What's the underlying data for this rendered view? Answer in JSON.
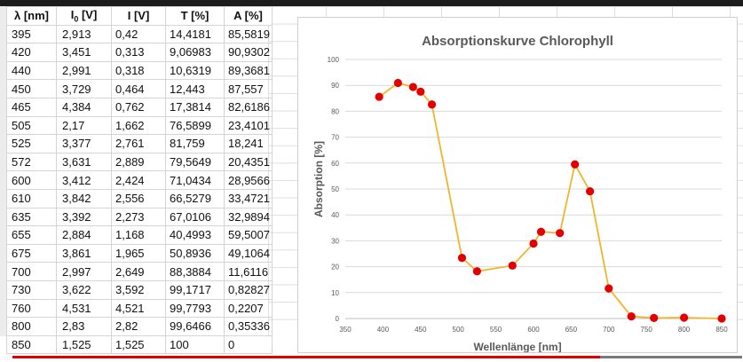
{
  "table": {
    "headers": {
      "lambda": "λ [nm]",
      "u0_main": "I",
      "u0_sub": "0",
      "u0_unit": "[V]",
      "u": "I [V]",
      "t": "T [%]",
      "a": "A [%]"
    },
    "rows": [
      [
        "395",
        "2,913",
        "0,42",
        "14,4181",
        "85,5819"
      ],
      [
        "420",
        "3,451",
        "0,313",
        "9,06983",
        "90,9302"
      ],
      [
        "440",
        "2,991",
        "0,318",
        "10,6319",
        "89,3681"
      ],
      [
        "450",
        "3,729",
        "0,464",
        "12,443",
        "87,557"
      ],
      [
        "465",
        "4,384",
        "0,762",
        "17,3814",
        "82,6186"
      ],
      [
        "505",
        "2,17",
        "1,662",
        "76,5899",
        "23,4101"
      ],
      [
        "525",
        "3,377",
        "2,761",
        "81,759",
        "18,241"
      ],
      [
        "572",
        "3,631",
        "2,889",
        "79,5649",
        "20,4351"
      ],
      [
        "600",
        "3,412",
        "2,424",
        "71,0434",
        "28,9566"
      ],
      [
        "610",
        "3,842",
        "2,556",
        "66,5279",
        "33,4721"
      ],
      [
        "635",
        "3,392",
        "2,273",
        "67,0106",
        "32,9894"
      ],
      [
        "655",
        "2,884",
        "1,168",
        "40,4993",
        "59,5007"
      ],
      [
        "675",
        "3,861",
        "1,965",
        "50,8936",
        "49,1064"
      ],
      [
        "700",
        "2,997",
        "2,649",
        "88,3884",
        "11,6116"
      ],
      [
        "730",
        "3,622",
        "3,592",
        "99,1717",
        "0,82827"
      ],
      [
        "760",
        "4,531",
        "4,521",
        "99,7793",
        "0,2207"
      ],
      [
        "800",
        "2,83",
        "2,82",
        "99,6466",
        "0,35336"
      ],
      [
        "850",
        "1,525",
        "1,525",
        "100",
        "0"
      ]
    ]
  },
  "chart_data": {
    "type": "scatter",
    "title": "Absorptionskurve Chlorophyll",
    "xlabel": "Wellenlänge [nm]",
    "ylabel": "Absorption [%]",
    "xlim": [
      350,
      850
    ],
    "ylim": [
      0,
      100
    ],
    "xticks": [
      350,
      400,
      450,
      500,
      550,
      600,
      650,
      700,
      750,
      800,
      850
    ],
    "yticks": [
      0,
      10,
      20,
      30,
      40,
      50,
      60,
      70,
      80,
      90,
      100
    ],
    "grid": "horizontal",
    "line_color": "#f0b52b",
    "marker_color": "#e30000",
    "series": [
      {
        "x": [
          395,
          420,
          440,
          450,
          465,
          505,
          525,
          572,
          600,
          610,
          635,
          655,
          675,
          700,
          730,
          760,
          800,
          850
        ],
        "y": [
          85.5819,
          90.9302,
          89.3681,
          87.557,
          82.6186,
          23.4101,
          18.241,
          20.4351,
          28.9566,
          33.4721,
          32.9894,
          59.5007,
          49.1064,
          11.6116,
          0.82827,
          0.2207,
          0.35336,
          0
        ]
      }
    ]
  },
  "progress": {
    "fraction": 0.805,
    "color": "#e00000"
  }
}
